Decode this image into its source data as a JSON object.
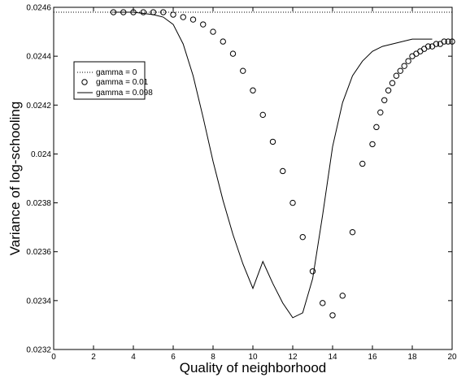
{
  "chart_data": {
    "type": "line",
    "title": "",
    "xlabel": "Quality of neighborhood",
    "ylabel": "Variance of log-schooling",
    "xlim": [
      0,
      20
    ],
    "ylim": [
      0.0232,
      0.0246
    ],
    "xticks": [
      0,
      2,
      4,
      6,
      8,
      10,
      12,
      14,
      16,
      18,
      20
    ],
    "xtick_labels": [
      "0",
      "2",
      "4",
      "6",
      "8",
      "10",
      "12",
      "14",
      "16",
      "18",
      "20"
    ],
    "yticks": [
      0.0232,
      0.0234,
      0.0236,
      0.0238,
      0.024,
      0.0242,
      0.0244,
      0.0246
    ],
    "ytick_labels": [
      "0.0232",
      "0.0234",
      "0.0236",
      "0.0238",
      "0.024",
      "0.0242",
      "0.0244",
      "0.0246"
    ],
    "grid": false,
    "legend_position": "upper-left",
    "series": [
      {
        "name": "gamma = 0",
        "style": "dotted",
        "color": "#000000",
        "x": [
          0,
          20
        ],
        "y": [
          0.02458,
          0.02458
        ]
      },
      {
        "name": "gamma = 0.01",
        "style": "circles",
        "color": "#000000",
        "x": [
          3,
          3.5,
          4,
          4.5,
          5,
          5.5,
          6,
          6.5,
          7,
          7.5,
          8,
          8.5,
          9,
          9.5,
          10,
          10.5,
          11,
          11.5,
          12,
          12.5,
          13,
          13.5,
          14,
          14.5,
          15,
          15.5,
          16,
          16.2,
          16.4,
          16.6,
          16.8,
          17,
          17.2,
          17.4,
          17.6,
          17.8,
          18,
          18.2,
          18.4,
          18.6,
          18.8,
          19,
          19.2,
          19.4,
          19.6,
          19.8,
          20
        ],
        "y": [
          0.02458,
          0.02458,
          0.02458,
          0.02458,
          0.02458,
          0.02458,
          0.02457,
          0.02456,
          0.02455,
          0.02453,
          0.0245,
          0.02446,
          0.02441,
          0.02434,
          0.02426,
          0.02416,
          0.02405,
          0.02393,
          0.0238,
          0.02366,
          0.02352,
          0.02339,
          0.02334,
          0.02342,
          0.02368,
          0.02396,
          0.02404,
          0.02411,
          0.02417,
          0.02422,
          0.02426,
          0.02429,
          0.02432,
          0.02434,
          0.02436,
          0.02438,
          0.0244,
          0.02441,
          0.02442,
          0.02443,
          0.02444,
          0.02444,
          0.02445,
          0.02445,
          0.02446,
          0.02446,
          0.02446
        ]
      },
      {
        "name": "gamma = 0.098",
        "style": "solid",
        "color": "#000000",
        "x": [
          3,
          4,
          5,
          5.5,
          6,
          6.5,
          7,
          7.5,
          8,
          8.5,
          9,
          9.5,
          10,
          10.5,
          11,
          11.5,
          12,
          12.5,
          13,
          13.5,
          14,
          14.5,
          15,
          15.5,
          16,
          16.5,
          17,
          17.5,
          18,
          18.5,
          19
        ],
        "y": [
          0.02458,
          0.02458,
          0.02457,
          0.02456,
          0.02453,
          0.02445,
          0.02432,
          0.02415,
          0.02397,
          0.02381,
          0.02367,
          0.02355,
          0.02345,
          0.02356,
          0.02347,
          0.02339,
          0.02333,
          0.02335,
          0.02349,
          0.02375,
          0.02403,
          0.02421,
          0.02432,
          0.02438,
          0.02442,
          0.02444,
          0.02445,
          0.02446,
          0.02447,
          0.02447,
          0.02447
        ]
      }
    ]
  }
}
